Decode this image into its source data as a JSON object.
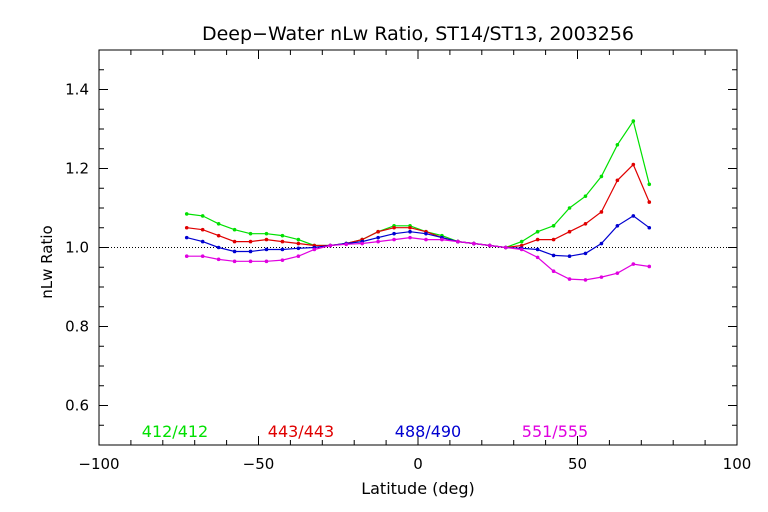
{
  "chart_data": {
    "type": "line",
    "title": "Deep−Water nLw Ratio, ST14/ST13, 2003256",
    "xlabel": "Latitude (deg)",
    "ylabel": "nLw Ratio",
    "xlim": [
      -100,
      100
    ],
    "ylim": [
      0.5,
      1.5
    ],
    "xticks": [
      -100,
      -50,
      0,
      50,
      100
    ],
    "xtick_labels": [
      "−100",
      "−50",
      "0",
      "50",
      "100"
    ],
    "yticks": [
      0.6,
      0.8,
      1.0,
      1.2,
      1.4
    ],
    "ytick_labels": [
      "0.6",
      "0.8",
      "1.0",
      "1.2",
      "1.4"
    ],
    "reference_line": 1.0,
    "x": [
      -72.5,
      -67.5,
      -62.5,
      -57.5,
      -52.5,
      -47.5,
      -42.5,
      -37.5,
      -32.5,
      -27.5,
      -22.5,
      -17.5,
      -12.5,
      -7.5,
      -2.5,
      2.5,
      7.5,
      12.5,
      17.5,
      22.5,
      27.5,
      32.5,
      37.5,
      42.5,
      47.5,
      52.5,
      57.5,
      62.5,
      67.5,
      72.5
    ],
    "series": [
      {
        "name": "412/412",
        "color": "#00e000",
        "values": [
          1.085,
          1.08,
          1.06,
          1.045,
          1.035,
          1.035,
          1.03,
          1.02,
          1.005,
          1.005,
          1.01,
          1.02,
          1.04,
          1.055,
          1.055,
          1.04,
          1.03,
          1.015,
          1.01,
          1.005,
          1.0,
          1.015,
          1.04,
          1.055,
          1.1,
          1.13,
          1.18,
          1.26,
          1.32,
          1.16
        ]
      },
      {
        "name": "443/443",
        "color": "#e00000",
        "values": [
          1.05,
          1.045,
          1.03,
          1.015,
          1.015,
          1.02,
          1.015,
          1.01,
          1.005,
          1.005,
          1.01,
          1.02,
          1.04,
          1.05,
          1.05,
          1.04,
          1.025,
          1.015,
          1.01,
          1.005,
          1.0,
          1.005,
          1.02,
          1.02,
          1.04,
          1.06,
          1.09,
          1.17,
          1.21,
          1.115
        ]
      },
      {
        "name": "488/490",
        "color": "#0000d0",
        "values": [
          1.025,
          1.015,
          1.0,
          0.99,
          0.99,
          0.995,
          0.995,
          0.998,
          1.0,
          1.005,
          1.01,
          1.015,
          1.025,
          1.035,
          1.04,
          1.035,
          1.025,
          1.015,
          1.01,
          1.005,
          1.0,
          0.998,
          0.995,
          0.98,
          0.978,
          0.985,
          1.01,
          1.055,
          1.08,
          1.05
        ]
      },
      {
        "name": "551/555",
        "color": "#e000e0",
        "values": [
          0.978,
          0.978,
          0.97,
          0.965,
          0.965,
          0.965,
          0.968,
          0.978,
          0.995,
          1.005,
          1.008,
          1.01,
          1.015,
          1.02,
          1.025,
          1.02,
          1.02,
          1.015,
          1.01,
          1.005,
          1.0,
          0.995,
          0.975,
          0.94,
          0.92,
          0.918,
          0.925,
          0.935,
          0.958,
          0.952
        ]
      }
    ],
    "legend_placement": "bottom, inside plot, horizontal"
  }
}
